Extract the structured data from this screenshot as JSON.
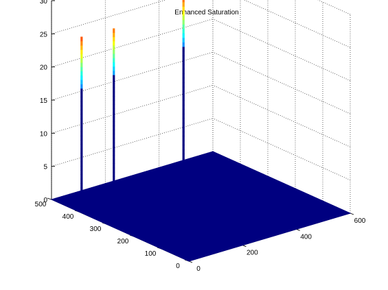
{
  "chart_data": {
    "type": "surface",
    "title": "Enhanced Saturation",
    "xlabel": "",
    "ylabel": "",
    "zlabel": "",
    "x_ticks": [
      "0",
      "200",
      "400",
      "600"
    ],
    "y_ticks": [
      "0",
      "100",
      "200",
      "300",
      "400",
      "500"
    ],
    "z_ticks": [
      "0",
      "5",
      "10",
      "15",
      "20",
      "25",
      "30"
    ],
    "xlim": [
      0,
      600
    ],
    "ylim": [
      0,
      500
    ],
    "zlim": [
      0,
      30
    ],
    "grid": true,
    "base_value": 0,
    "base_color": "#000080",
    "colormap": "jet",
    "spikes": [
      {
        "x": 20,
        "y": 410,
        "z": 26
      },
      {
        "x": 150,
        "y": 420,
        "z": 25.5
      },
      {
        "x": 455,
        "y": 465,
        "z": 27
      }
    ]
  }
}
